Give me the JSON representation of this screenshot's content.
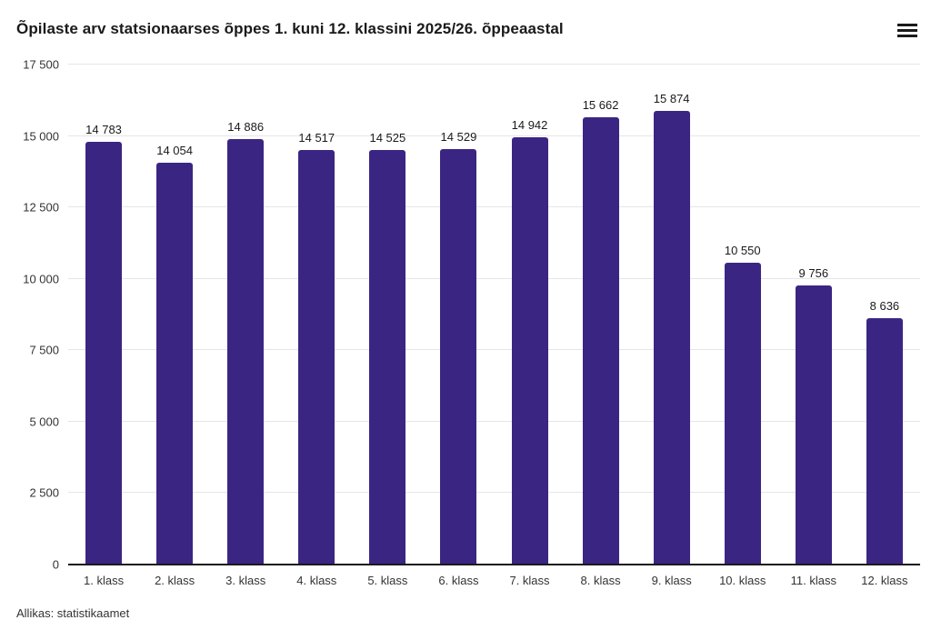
{
  "chart": {
    "title": "Õpilaste arv statsionaarses õppes 1. kuni 12. klassini 2025/26. õppeaastal",
    "source": "Allikas: statistikaamet",
    "menu_icon": "hamburger-export-menu"
  },
  "chart_data": {
    "type": "bar",
    "title": "Õpilaste arv statsionaarses õppes 1. kuni 12. klassini 2025/26. õppeaastal",
    "categories": [
      "1. klass",
      "2. klass",
      "3. klass",
      "4. klass",
      "5. klass",
      "6. klass",
      "7. klass",
      "8. klass",
      "9. klass",
      "10. klass",
      "11. klass",
      "12. klass"
    ],
    "values": [
      14783,
      14054,
      14886,
      14517,
      14525,
      14529,
      14942,
      15662,
      15874,
      10550,
      9756,
      8636
    ],
    "value_labels": [
      "14 783",
      "14 054",
      "14 886",
      "14 517",
      "14 525",
      "14 529",
      "14 942",
      "15 662",
      "15 874",
      "10 550",
      "9 756",
      "8 636"
    ],
    "xlabel": "",
    "ylabel": "",
    "ylim": [
      0,
      17500
    ],
    "yticks": [
      0,
      2500,
      5000,
      7500,
      10000,
      12500,
      15000,
      17500
    ],
    "ytick_labels": [
      "0",
      "2 500",
      "5 000",
      "7 500",
      "10 000",
      "12 500",
      "15 000",
      "17 500"
    ],
    "grid": true,
    "legend": "none",
    "bar_color": "#3b2583",
    "axis_line_color": "#1a1a1a",
    "gridline_color": "#e6e6e6"
  }
}
